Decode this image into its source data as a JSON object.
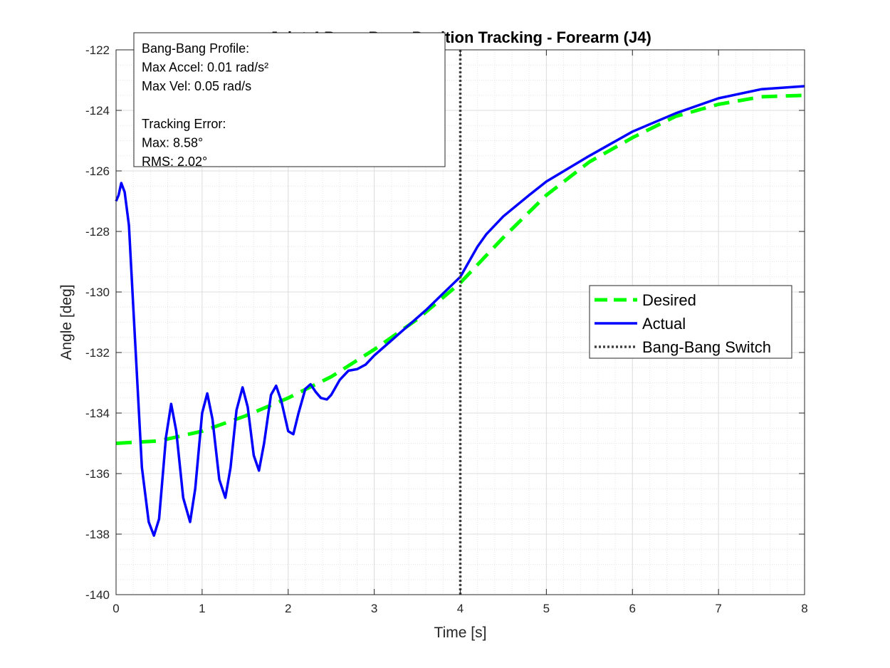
{
  "chart_data": {
    "type": "line",
    "title": "Joint 4 Bang-Bang Position Tracking - Forearm (J4)",
    "xlabel": "Time [s]",
    "ylabel": "Angle [deg]",
    "xlim": [
      0,
      8
    ],
    "ylim": [
      -140,
      -122
    ],
    "xticks": [
      0,
      1,
      2,
      3,
      4,
      5,
      6,
      7,
      8
    ],
    "yticks": [
      -140,
      -138,
      -136,
      -134,
      -132,
      -130,
      -128,
      -126,
      -124,
      -122
    ],
    "grid": true,
    "minor_grid": true,
    "legend_position": "right",
    "series": [
      {
        "name": "Desired",
        "color": "#00ff00",
        "style": "dashed",
        "x": [
          0,
          0.5,
          1,
          1.5,
          2,
          2.5,
          3,
          3.5,
          4,
          4.5,
          5,
          5.5,
          6,
          6.5,
          7,
          7.5,
          8
        ],
        "y": [
          -135.0,
          -134.92,
          -134.6,
          -134.1,
          -133.5,
          -132.8,
          -131.9,
          -130.9,
          -129.7,
          -128.2,
          -126.8,
          -125.7,
          -124.9,
          -124.2,
          -123.8,
          -123.55,
          -123.5
        ]
      },
      {
        "name": "Actual",
        "color": "#0000ff",
        "style": "solid",
        "x": [
          0,
          0.03,
          0.06,
          0.1,
          0.15,
          0.2,
          0.3,
          0.38,
          0.44,
          0.5,
          0.58,
          0.64,
          0.7,
          0.78,
          0.86,
          0.92,
          1.0,
          1.06,
          1.12,
          1.2,
          1.27,
          1.33,
          1.4,
          1.47,
          1.53,
          1.6,
          1.66,
          1.72,
          1.8,
          1.86,
          1.92,
          2.0,
          2.06,
          2.12,
          2.2,
          2.26,
          2.32,
          2.38,
          2.45,
          2.5,
          2.6,
          2.7,
          2.8,
          2.9,
          3.0,
          3.2,
          3.4,
          3.6,
          3.8,
          4.0,
          4.1,
          4.2,
          4.3,
          4.5,
          4.8,
          5.0,
          5.5,
          6.0,
          6.5,
          7.0,
          7.5,
          8.0
        ],
        "y": [
          -127.0,
          -126.8,
          -126.4,
          -126.7,
          -127.8,
          -130.5,
          -135.8,
          -137.6,
          -138.05,
          -137.5,
          -134.8,
          -133.7,
          -134.6,
          -136.8,
          -137.6,
          -136.5,
          -134.0,
          -133.35,
          -134.2,
          -136.2,
          -136.8,
          -135.8,
          -133.9,
          -133.15,
          -133.8,
          -135.4,
          -135.9,
          -135.0,
          -133.4,
          -133.1,
          -133.6,
          -134.6,
          -134.7,
          -134.0,
          -133.2,
          -133.05,
          -133.3,
          -133.5,
          -133.55,
          -133.4,
          -132.9,
          -132.6,
          -132.55,
          -132.4,
          -132.1,
          -131.6,
          -131.1,
          -130.6,
          -130.05,
          -129.5,
          -129.0,
          -128.5,
          -128.1,
          -127.5,
          -126.8,
          -126.35,
          -125.5,
          -124.7,
          -124.1,
          -123.6,
          -123.3,
          -123.2
        ]
      },
      {
        "name": "Bang-Bang Switch",
        "color": "#404040",
        "style": "dotted",
        "x": [
          4,
          4
        ],
        "y": [
          -140,
          -122
        ]
      }
    ],
    "annotation": {
      "lines": [
        "Bang-Bang Profile:",
        "Max Accel: 0.01 rad/s²",
        "Max Vel: 0.05 rad/s",
        "",
        "Tracking Error:",
        "Max: 8.58°",
        "RMS: 2.02°"
      ]
    }
  }
}
